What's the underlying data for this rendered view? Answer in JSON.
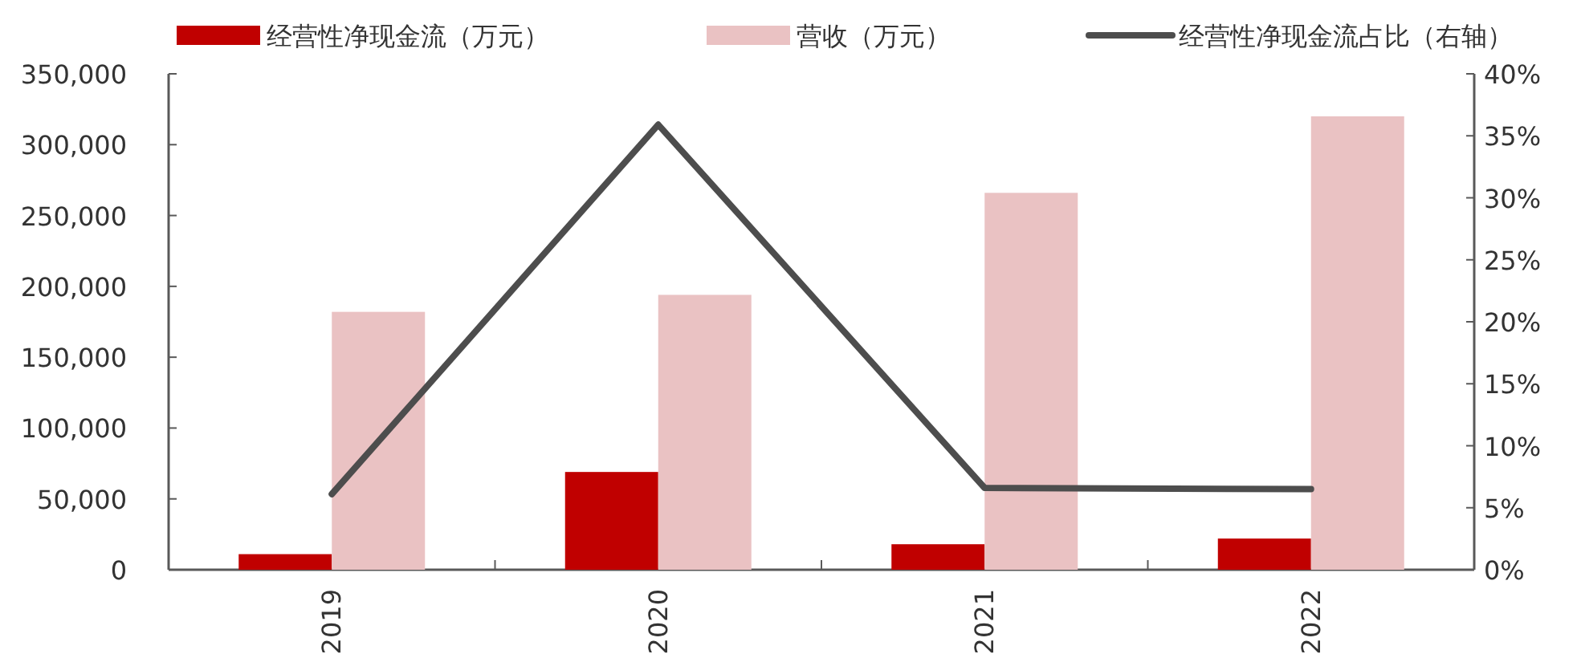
{
  "chart_data": {
    "type": "bar",
    "categories": [
      "2019",
      "2020",
      "2021",
      "2022"
    ],
    "series": [
      {
        "name": "经营性净现金流（万元）",
        "color": "#c00000",
        "values": [
          11000,
          69000,
          18000,
          22000
        ]
      },
      {
        "name": "营收（万元）",
        "color": "#eac2c3",
        "values": [
          182000,
          194000,
          266000,
          320000
        ]
      },
      {
        "name": "经营性净现金流占比（右轴）",
        "color": "#4d4d4d",
        "type": "line",
        "axis": "y2",
        "values": [
          6.1,
          35.9,
          6.6,
          6.5
        ]
      }
    ],
    "ylim": [
      0,
      350000
    ],
    "yticks": [
      {
        "value": 0,
        "label": "0"
      },
      {
        "value": 50000,
        "label": "50,000"
      },
      {
        "value": 100000,
        "label": "100,000"
      },
      {
        "value": 150000,
        "label": "150,000"
      },
      {
        "value": 200000,
        "label": "200,000"
      },
      {
        "value": 250000,
        "label": "250,000"
      },
      {
        "value": 300000,
        "label": "300,000"
      },
      {
        "value": 350000,
        "label": "350,000"
      }
    ],
    "y2lim": [
      0,
      40
    ],
    "y2ticks": [
      {
        "value": 0,
        "label": "0%"
      },
      {
        "value": 5,
        "label": "5%"
      },
      {
        "value": 10,
        "label": "10%"
      },
      {
        "value": 15,
        "label": "15%"
      },
      {
        "value": 20,
        "label": "20%"
      },
      {
        "value": 25,
        "label": "25%"
      },
      {
        "value": 30,
        "label": "30%"
      },
      {
        "value": 35,
        "label": "35%"
      },
      {
        "value": 40,
        "label": "40%"
      }
    ],
    "legend": "top",
    "grid": false
  }
}
